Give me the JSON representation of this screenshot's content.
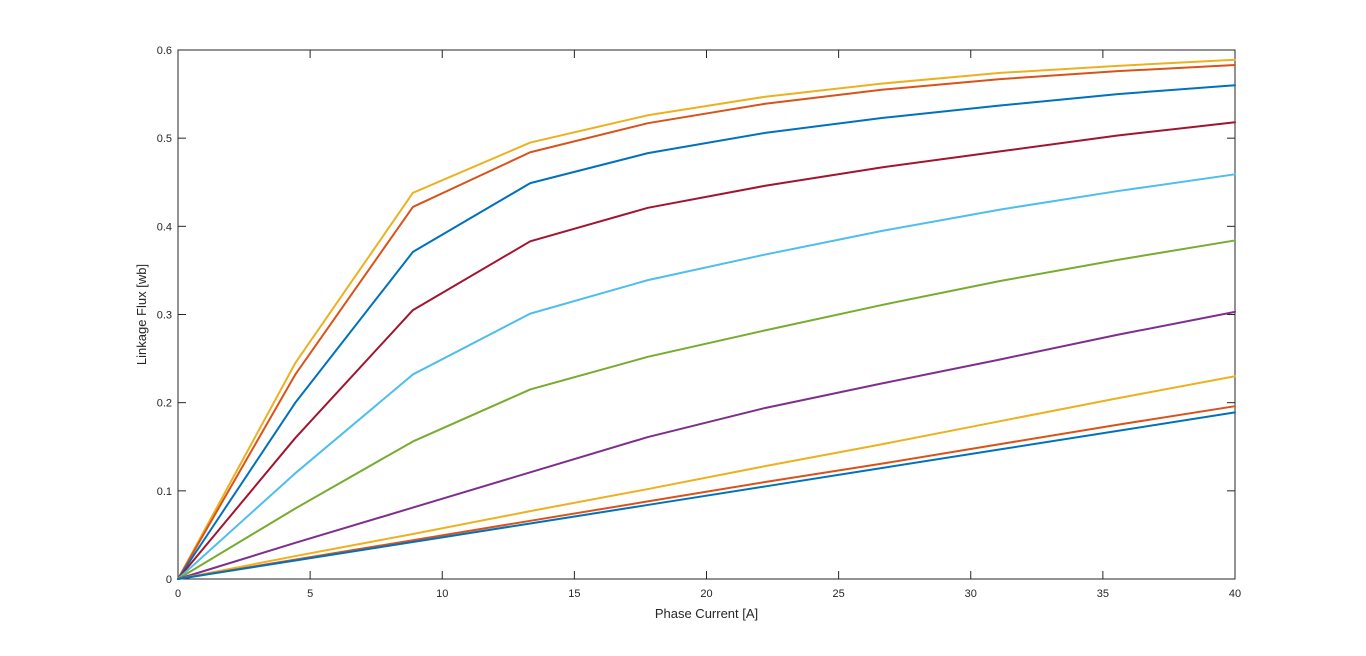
{
  "chart_data": {
    "type": "line",
    "title": "",
    "xlabel": "Phase Current [A]",
    "ylabel": "Linkage Flux [wb]",
    "xlim": [
      0,
      40
    ],
    "ylim": [
      0,
      0.6
    ],
    "xticks": [
      0,
      5,
      10,
      15,
      20,
      25,
      30,
      35,
      40
    ],
    "yticks": [
      0,
      0.1,
      0.2,
      0.3,
      0.4,
      0.5,
      0.6
    ],
    "xtick_labels": [
      "0",
      "5",
      "10",
      "15",
      "20",
      "25",
      "30",
      "35",
      "40"
    ],
    "ytick_labels": [
      "0",
      "0.1",
      "0.2",
      "0.3",
      "0.4",
      "0.5",
      "0.6"
    ],
    "grid": false,
    "legend": "none",
    "x": [
      0,
      4.44,
      8.89,
      13.33,
      17.78,
      22.22,
      26.67,
      31.11,
      35.56,
      40
    ],
    "series": [
      {
        "color": "#EDB120",
        "values": [
          0,
          0.245,
          0.438,
          0.495,
          0.526,
          0.547,
          0.562,
          0.574,
          0.582,
          0.589
        ]
      },
      {
        "color": "#D95319",
        "values": [
          0,
          0.232,
          0.422,
          0.484,
          0.517,
          0.539,
          0.555,
          0.567,
          0.576,
          0.583
        ]
      },
      {
        "color": "#0072BD",
        "values": [
          0,
          0.2,
          0.371,
          0.449,
          0.483,
          0.506,
          0.523,
          0.537,
          0.55,
          0.56
        ]
      },
      {
        "color": "#A2142F",
        "values": [
          0,
          0.16,
          0.305,
          0.383,
          0.421,
          0.446,
          0.467,
          0.485,
          0.503,
          0.518
        ]
      },
      {
        "color": "#4DBEEE",
        "values": [
          0,
          0.12,
          0.232,
          0.301,
          0.339,
          0.368,
          0.395,
          0.419,
          0.44,
          0.459
        ]
      },
      {
        "color": "#77AC30",
        "values": [
          0,
          0.08,
          0.156,
          0.215,
          0.252,
          0.282,
          0.311,
          0.338,
          0.362,
          0.384
        ]
      },
      {
        "color": "#7E2F8E",
        "values": [
          0,
          0.041,
          0.081,
          0.121,
          0.161,
          0.194,
          0.222,
          0.249,
          0.277,
          0.303
        ]
      },
      {
        "color": "#EDB120",
        "values": [
          0,
          0.026,
          0.051,
          0.077,
          0.102,
          0.128,
          0.153,
          0.179,
          0.205,
          0.23
        ]
      },
      {
        "color": "#D95319",
        "values": [
          0,
          0.022,
          0.044,
          0.066,
          0.088,
          0.11,
          0.131,
          0.153,
          0.175,
          0.196
        ]
      },
      {
        "color": "#0072BD",
        "values": [
          0,
          0.021,
          0.042,
          0.063,
          0.084,
          0.105,
          0.126,
          0.147,
          0.168,
          0.189
        ]
      }
    ]
  }
}
